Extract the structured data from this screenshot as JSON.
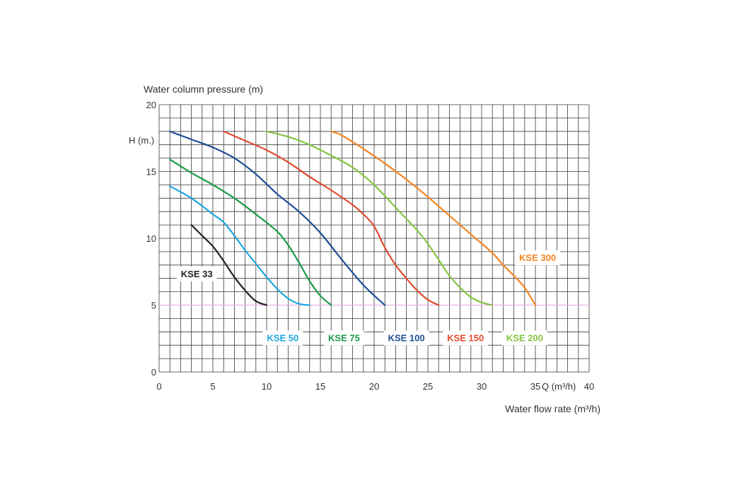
{
  "chart_data": {
    "type": "line",
    "ylabel": "Water column pressure (m)",
    "y_unit_label": "H (m.)",
    "xlabel": "Water flow rate (m³/h)",
    "x_unit_label": "Q (m³/h)",
    "xlim": [
      0,
      40
    ],
    "ylim": [
      0,
      20
    ],
    "x_ticks": [
      {
        "value": 0,
        "label": "0"
      },
      {
        "value": 5,
        "label": "5"
      },
      {
        "value": 10,
        "label": "10"
      },
      {
        "value": 15,
        "label": "15"
      },
      {
        "value": 20,
        "label": "20"
      },
      {
        "value": 25,
        "label": "25"
      },
      {
        "value": 30,
        "label": "30"
      },
      {
        "value": 35,
        "label": "35"
      },
      {
        "value": 40,
        "label": "40"
      }
    ],
    "y_ticks": [
      {
        "value": 0,
        "label": "0"
      },
      {
        "value": 5,
        "label": "5"
      },
      {
        "value": 10,
        "label": "10"
      },
      {
        "value": 15,
        "label": "15"
      },
      {
        "value": 20,
        "label": "20"
      }
    ],
    "grid": true,
    "grid_step": {
      "x": 1,
      "y": 1
    },
    "reference_line": {
      "y": 5,
      "color": "#e7b4e7"
    },
    "series": [
      {
        "name": "KSE 33",
        "color": "#222222",
        "label_anchor": {
          "x": 3.5,
          "y": 7.1
        },
        "points": [
          [
            3,
            11
          ],
          [
            4,
            10.2
          ],
          [
            5,
            9.4
          ],
          [
            6,
            8.3
          ],
          [
            7,
            7.1
          ],
          [
            8,
            6.1
          ],
          [
            9,
            5.3
          ],
          [
            10,
            5.0
          ]
        ]
      },
      {
        "name": "KSE 50",
        "color": "#1ea7df",
        "label_anchor": {
          "x": 11.5,
          "y": 2.3
        },
        "points": [
          [
            1,
            13.9
          ],
          [
            3,
            13
          ],
          [
            5,
            11.8
          ],
          [
            6,
            11.2
          ],
          [
            7,
            10.2
          ],
          [
            8,
            9.1
          ],
          [
            9,
            8.1
          ],
          [
            10,
            7.1
          ],
          [
            11,
            6.2
          ],
          [
            12,
            5.5
          ],
          [
            13,
            5.1
          ],
          [
            14,
            5.0
          ]
        ]
      },
      {
        "name": "KSE 75",
        "color": "#1a9a4a",
        "label_anchor": {
          "x": 17.2,
          "y": 2.3
        },
        "points": [
          [
            1,
            15.9
          ],
          [
            3,
            14.9
          ],
          [
            5,
            14
          ],
          [
            7,
            13
          ],
          [
            9,
            11.8
          ],
          [
            11,
            10.5
          ],
          [
            12,
            9.5
          ],
          [
            13,
            8.2
          ],
          [
            14,
            6.8
          ],
          [
            15,
            5.7
          ],
          [
            16,
            5.0
          ]
        ]
      },
      {
        "name": "KSE 100",
        "color": "#1f4e96",
        "label_anchor": {
          "x": 23.0,
          "y": 2.3
        },
        "points": [
          [
            1,
            18
          ],
          [
            3,
            17.4
          ],
          [
            5,
            16.8
          ],
          [
            7,
            16
          ],
          [
            9,
            14.8
          ],
          [
            11,
            13.3
          ],
          [
            13,
            12
          ],
          [
            15,
            10.4
          ],
          [
            17,
            8.4
          ],
          [
            19,
            6.5
          ],
          [
            21,
            5.0
          ]
        ]
      },
      {
        "name": "KSE 150",
        "color": "#e24a2e",
        "label_anchor": {
          "x": 28.5,
          "y": 2.3
        },
        "points": [
          [
            6,
            18
          ],
          [
            8,
            17.3
          ],
          [
            10,
            16.6
          ],
          [
            12,
            15.7
          ],
          [
            14,
            14.6
          ],
          [
            16,
            13.6
          ],
          [
            18,
            12.5
          ],
          [
            19,
            11.8
          ],
          [
            20,
            10.9
          ],
          [
            21,
            9.3
          ],
          [
            22,
            8
          ],
          [
            23,
            7
          ],
          [
            24,
            6.1
          ],
          [
            25,
            5.4
          ],
          [
            26,
            5.0
          ]
        ]
      },
      {
        "name": "KSE 200",
        "color": "#86c440",
        "label_anchor": {
          "x": 34.0,
          "y": 2.3
        },
        "points": [
          [
            10,
            18
          ],
          [
            12,
            17.6
          ],
          [
            14,
            17
          ],
          [
            16,
            16.2
          ],
          [
            18,
            15.3
          ],
          [
            20,
            14
          ],
          [
            22,
            12.3
          ],
          [
            24,
            10.6
          ],
          [
            25,
            9.6
          ],
          [
            26,
            8.4
          ],
          [
            27,
            7.2
          ],
          [
            28,
            6.3
          ],
          [
            29,
            5.6
          ],
          [
            30,
            5.2
          ],
          [
            31,
            5.0
          ]
        ]
      },
      {
        "name": "KSE 300",
        "color": "#f58522",
        "label_anchor": {
          "x": 35.2,
          "y": 8.3
        },
        "points": [
          [
            16,
            18
          ],
          [
            17,
            17.7
          ],
          [
            19,
            16.7
          ],
          [
            21,
            15.6
          ],
          [
            23,
            14.4
          ],
          [
            25,
            13.1
          ],
          [
            27,
            11.7
          ],
          [
            29,
            10.3
          ],
          [
            31,
            8.9
          ],
          [
            32,
            8
          ],
          [
            33,
            7.2
          ],
          [
            34,
            6.3
          ],
          [
            35,
            5.0
          ]
        ]
      }
    ]
  }
}
